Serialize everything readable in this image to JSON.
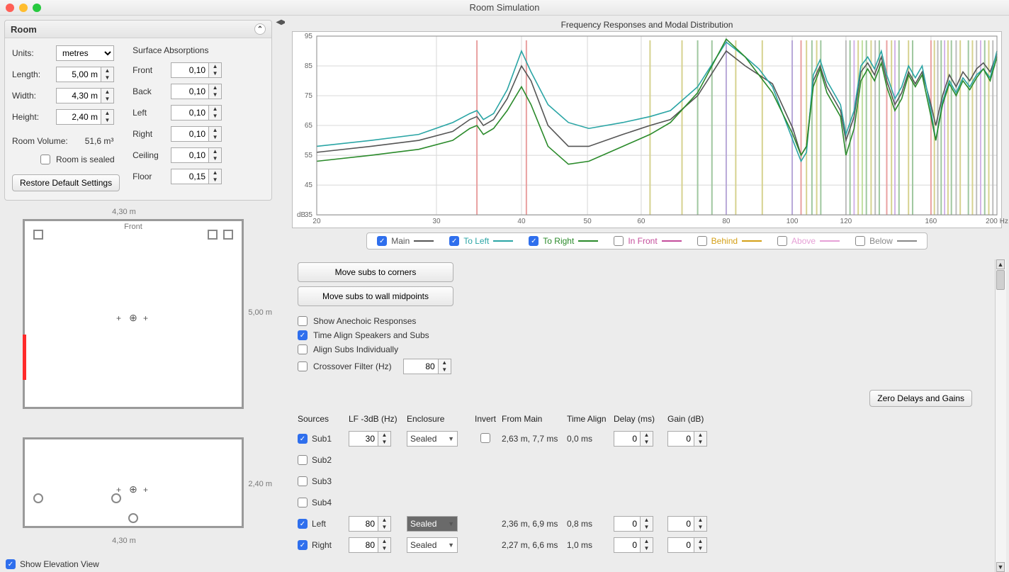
{
  "window": {
    "title": "Room Simulation"
  },
  "room_panel": {
    "title": "Room",
    "units_label": "Units:",
    "units_value": "metres",
    "length_label": "Length:",
    "length_value": "5,00 m",
    "width_label": "Width:",
    "width_value": "4,30 m",
    "height_label": "Height:",
    "height_value": "2,40 m",
    "volume_label": "Room Volume:",
    "volume_value": "51,6 m³",
    "sealed_label": "Room is sealed",
    "restore_label": "Restore Default Settings",
    "abs_title": "Surface Absorptions",
    "abs": [
      {
        "label": "Front",
        "value": "0,10"
      },
      {
        "label": "Back",
        "value": "0,10"
      },
      {
        "label": "Left",
        "value": "0,10"
      },
      {
        "label": "Right",
        "value": "0,10"
      },
      {
        "label": "Ceiling",
        "value": "0,10"
      },
      {
        "label": "Floor",
        "value": "0,15"
      }
    ]
  },
  "plan": {
    "top_dim": "4,30 m",
    "right_dim": "5,00 m",
    "front_label": "Front",
    "elev_right": "2,40 m",
    "elev_bottom": "4,30 m"
  },
  "show_elev_label": "Show Elevation View",
  "chart": {
    "title": "Frequency Responses and Modal Distribution",
    "x_label_end": "200 Hz",
    "y_unit": "dB",
    "x_ticks": [
      "20",
      "30",
      "40",
      "50",
      "60",
      "80",
      "100",
      "120",
      "160",
      "200"
    ],
    "x_tick_pos": [
      0,
      0.176,
      0.301,
      0.398,
      0.477,
      0.602,
      0.699,
      0.778,
      0.903,
      1.0
    ],
    "y_ticks": [
      "95",
      "85",
      "75",
      "65",
      "55",
      "45",
      "35"
    ],
    "ylim": [
      35,
      95
    ],
    "background": "#ffffff",
    "grid_color": "#d8d8d8",
    "modal_lines": [
      {
        "x": 0.2355,
        "color": "#e9a0a0"
      },
      {
        "x": 0.3082,
        "color": "#e9a0a0"
      },
      {
        "x": 0.49,
        "color": "#d6d28f"
      },
      {
        "x": 0.537,
        "color": "#d6d28f"
      },
      {
        "x": 0.56,
        "color": "#9fc79f"
      },
      {
        "x": 0.581,
        "color": "#9fc79f"
      },
      {
        "x": 0.602,
        "color": "#b8a8d8"
      },
      {
        "x": 0.616,
        "color": "#d6d28f"
      },
      {
        "x": 0.655,
        "color": "#d6d28f"
      },
      {
        "x": 0.699,
        "color": "#b8a8d8"
      },
      {
        "x": 0.712,
        "color": "#e9a0a0"
      },
      {
        "x": 0.72,
        "color": "#d6d28f"
      },
      {
        "x": 0.728,
        "color": "#9fc79f"
      },
      {
        "x": 0.735,
        "color": "#d6d28f"
      },
      {
        "x": 0.741,
        "color": "#9fc79f"
      },
      {
        "x": 0.778,
        "color": "#bdbdbd"
      },
      {
        "x": 0.784,
        "color": "#9fc79f"
      },
      {
        "x": 0.79,
        "color": "#d2b4e8"
      },
      {
        "x": 0.796,
        "color": "#d6d28f"
      },
      {
        "x": 0.802,
        "color": "#c0e0a0"
      },
      {
        "x": 0.808,
        "color": "#9fc79f"
      },
      {
        "x": 0.815,
        "color": "#d6d28f"
      },
      {
        "x": 0.821,
        "color": "#bdbdbd"
      },
      {
        "x": 0.827,
        "color": "#9fc79f"
      },
      {
        "x": 0.838,
        "color": "#e9a0a0"
      },
      {
        "x": 0.845,
        "color": "#d6d28f"
      },
      {
        "x": 0.85,
        "color": "#d2b4e8"
      },
      {
        "x": 0.856,
        "color": "#9fc79f"
      },
      {
        "x": 0.87,
        "color": "#d6d28f"
      },
      {
        "x": 0.876,
        "color": "#9fc79f"
      },
      {
        "x": 0.903,
        "color": "#e9a0a0"
      },
      {
        "x": 0.908,
        "color": "#d6d28f"
      },
      {
        "x": 0.913,
        "color": "#bdbdbd"
      },
      {
        "x": 0.918,
        "color": "#9fc79f"
      },
      {
        "x": 0.923,
        "color": "#d2b4e8"
      },
      {
        "x": 0.928,
        "color": "#d6d28f"
      },
      {
        "x": 0.933,
        "color": "#9fc79f"
      },
      {
        "x": 0.94,
        "color": "#bdbdbd"
      },
      {
        "x": 0.946,
        "color": "#d6d28f"
      },
      {
        "x": 0.958,
        "color": "#9fc79f"
      },
      {
        "x": 0.964,
        "color": "#d6d28f"
      },
      {
        "x": 0.97,
        "color": "#bdbdbd"
      },
      {
        "x": 0.976,
        "color": "#d2b4e8"
      },
      {
        "x": 0.982,
        "color": "#9fc79f"
      },
      {
        "x": 0.988,
        "color": "#d6d28f"
      },
      {
        "x": 0.994,
        "color": "#bdbdbd"
      }
    ],
    "series": [
      {
        "name": "Main",
        "color": "#555555",
        "checked": true,
        "points": [
          [
            0,
            56
          ],
          [
            0.08,
            58
          ],
          [
            0.15,
            60
          ],
          [
            0.2,
            63
          ],
          [
            0.225,
            67
          ],
          [
            0.2355,
            68
          ],
          [
            0.245,
            65
          ],
          [
            0.26,
            67
          ],
          [
            0.28,
            74
          ],
          [
            0.301,
            85
          ],
          [
            0.315,
            80
          ],
          [
            0.34,
            65
          ],
          [
            0.37,
            58
          ],
          [
            0.4,
            58
          ],
          [
            0.45,
            62
          ],
          [
            0.49,
            65
          ],
          [
            0.52,
            67
          ],
          [
            0.56,
            75
          ],
          [
            0.602,
            90
          ],
          [
            0.63,
            85
          ],
          [
            0.65,
            82
          ],
          [
            0.67,
            79
          ],
          [
            0.7,
            64
          ],
          [
            0.712,
            55
          ],
          [
            0.72,
            58
          ],
          [
            0.73,
            80
          ],
          [
            0.74,
            85
          ],
          [
            0.75,
            78
          ],
          [
            0.77,
            70
          ],
          [
            0.778,
            60
          ],
          [
            0.79,
            68
          ],
          [
            0.8,
            83
          ],
          [
            0.81,
            86
          ],
          [
            0.82,
            82
          ],
          [
            0.83,
            88
          ],
          [
            0.838,
            80
          ],
          [
            0.85,
            72
          ],
          [
            0.86,
            76
          ],
          [
            0.87,
            83
          ],
          [
            0.88,
            79
          ],
          [
            0.89,
            83
          ],
          [
            0.903,
            72
          ],
          [
            0.91,
            65
          ],
          [
            0.92,
            75
          ],
          [
            0.93,
            82
          ],
          [
            0.94,
            78
          ],
          [
            0.95,
            83
          ],
          [
            0.96,
            80
          ],
          [
            0.97,
            84
          ],
          [
            0.98,
            86
          ],
          [
            0.99,
            83
          ],
          [
            1.0,
            89
          ]
        ]
      },
      {
        "name": "To Left",
        "color": "#2aa5a5",
        "checked": true,
        "points": [
          [
            0,
            58
          ],
          [
            0.08,
            60
          ],
          [
            0.15,
            62
          ],
          [
            0.2,
            66
          ],
          [
            0.225,
            69
          ],
          [
            0.2355,
            70
          ],
          [
            0.245,
            67
          ],
          [
            0.26,
            69
          ],
          [
            0.28,
            77
          ],
          [
            0.301,
            90
          ],
          [
            0.315,
            83
          ],
          [
            0.34,
            72
          ],
          [
            0.37,
            66
          ],
          [
            0.4,
            64
          ],
          [
            0.45,
            66
          ],
          [
            0.49,
            68
          ],
          [
            0.52,
            70
          ],
          [
            0.56,
            78
          ],
          [
            0.602,
            93
          ],
          [
            0.63,
            88
          ],
          [
            0.65,
            84
          ],
          [
            0.67,
            78
          ],
          [
            0.7,
            60
          ],
          [
            0.712,
            53
          ],
          [
            0.72,
            56
          ],
          [
            0.73,
            82
          ],
          [
            0.74,
            87
          ],
          [
            0.75,
            80
          ],
          [
            0.77,
            72
          ],
          [
            0.778,
            62
          ],
          [
            0.79,
            70
          ],
          [
            0.8,
            85
          ],
          [
            0.81,
            88
          ],
          [
            0.82,
            84
          ],
          [
            0.83,
            90
          ],
          [
            0.838,
            82
          ],
          [
            0.85,
            74
          ],
          [
            0.86,
            78
          ],
          [
            0.87,
            85
          ],
          [
            0.88,
            81
          ],
          [
            0.89,
            85
          ],
          [
            0.903,
            70
          ],
          [
            0.91,
            60
          ],
          [
            0.92,
            73
          ],
          [
            0.93,
            80
          ],
          [
            0.94,
            76
          ],
          [
            0.95,
            81
          ],
          [
            0.96,
            78
          ],
          [
            0.97,
            82
          ],
          [
            0.98,
            84
          ],
          [
            0.99,
            81
          ],
          [
            1.0,
            90
          ]
        ]
      },
      {
        "name": "To Right",
        "color": "#2a8a2a",
        "checked": true,
        "points": [
          [
            0,
            53
          ],
          [
            0.08,
            55
          ],
          [
            0.15,
            57
          ],
          [
            0.2,
            60
          ],
          [
            0.225,
            64
          ],
          [
            0.2355,
            65
          ],
          [
            0.245,
            62
          ],
          [
            0.26,
            64
          ],
          [
            0.28,
            70
          ],
          [
            0.301,
            78
          ],
          [
            0.315,
            72
          ],
          [
            0.34,
            58
          ],
          [
            0.37,
            52
          ],
          [
            0.4,
            53
          ],
          [
            0.45,
            58
          ],
          [
            0.49,
            62
          ],
          [
            0.52,
            66
          ],
          [
            0.56,
            76
          ],
          [
            0.602,
            94
          ],
          [
            0.63,
            88
          ],
          [
            0.65,
            82
          ],
          [
            0.67,
            76
          ],
          [
            0.7,
            62
          ],
          [
            0.712,
            55
          ],
          [
            0.72,
            58
          ],
          [
            0.73,
            78
          ],
          [
            0.74,
            84
          ],
          [
            0.75,
            76
          ],
          [
            0.77,
            68
          ],
          [
            0.778,
            55
          ],
          [
            0.79,
            64
          ],
          [
            0.8,
            80
          ],
          [
            0.81,
            84
          ],
          [
            0.82,
            80
          ],
          [
            0.83,
            86
          ],
          [
            0.838,
            78
          ],
          [
            0.85,
            70
          ],
          [
            0.86,
            74
          ],
          [
            0.87,
            82
          ],
          [
            0.88,
            78
          ],
          [
            0.89,
            82
          ],
          [
            0.903,
            68
          ],
          [
            0.91,
            60
          ],
          [
            0.92,
            72
          ],
          [
            0.93,
            79
          ],
          [
            0.94,
            75
          ],
          [
            0.95,
            80
          ],
          [
            0.96,
            77
          ],
          [
            0.97,
            81
          ],
          [
            0.98,
            84
          ],
          [
            0.99,
            80
          ],
          [
            1.0,
            88
          ]
        ]
      }
    ],
    "legend_extra": [
      {
        "name": "In Front",
        "color": "#c44d9b",
        "checked": false
      },
      {
        "name": "Behind",
        "color": "#d4a017",
        "checked": false
      },
      {
        "name": "Above",
        "color": "#e6a0d6",
        "checked": false
      },
      {
        "name": "Below",
        "color": "#888888",
        "checked": false
      }
    ]
  },
  "controls": {
    "move_corners": "Move subs to corners",
    "move_mid": "Move subs to wall midpoints",
    "anechoic": "Show Anechoic Responses",
    "timealign": "Time Align Speakers and Subs",
    "alignind": "Align Subs Individually",
    "xover_label": "Crossover Filter (Hz)",
    "xover_value": "80",
    "zero_btn": "Zero Delays and Gains"
  },
  "sources": {
    "headers": [
      "Sources",
      "LF -3dB (Hz)",
      "Enclosure",
      "Invert",
      "From Main",
      "Time Align",
      "Delay (ms)",
      "Gain (dB)"
    ],
    "rows": [
      {
        "checked": true,
        "name": "Sub1",
        "lf": "30",
        "enc": "Sealed",
        "enc_hl": false,
        "invert": false,
        "from": "2,63 m, 7,7 ms",
        "ta": "0,0 ms",
        "delay": "0",
        "gain": "0"
      },
      {
        "checked": false,
        "name": "Sub2"
      },
      {
        "checked": false,
        "name": "Sub3"
      },
      {
        "checked": false,
        "name": "Sub4"
      },
      {
        "checked": true,
        "name": "Left",
        "lf": "80",
        "enc": "Sealed",
        "enc_hl": true,
        "invert": null,
        "from": "2,36 m, 6,9 ms",
        "ta": "0,8 ms",
        "delay": "0",
        "gain": "0"
      },
      {
        "checked": true,
        "name": "Right",
        "lf": "80",
        "enc": "Sealed",
        "enc_hl": false,
        "invert": null,
        "from": "2,27 m, 6,6 ms",
        "ta": "1,0 ms",
        "delay": "0",
        "gain": "0"
      }
    ]
  }
}
